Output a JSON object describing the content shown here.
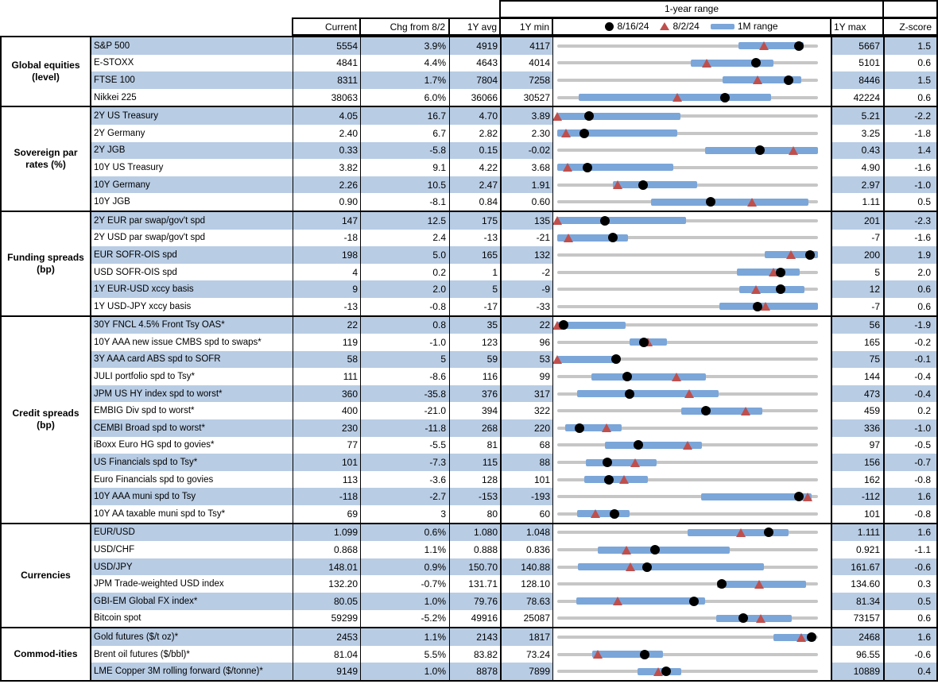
{
  "colors": {
    "row_stripe_blue": "#b8cce4",
    "range_bar_blue": "#7ba6d9",
    "track_gray": "#c6c6c6",
    "marker_red": "#bf4f4c",
    "marker_black": "#000000"
  },
  "chart_data": {
    "type": "table",
    "range_title": "1-year range",
    "columns": [
      "Current",
      "Chg from 8/2",
      "1Y avg",
      "1Y min",
      "1Y max",
      "Z-score"
    ],
    "legend": [
      {
        "shape": "dot",
        "label": "8/16/24"
      },
      {
        "shape": "triangle",
        "label": "8/2/24"
      },
      {
        "shape": "bar",
        "label": "1M range"
      }
    ],
    "sections": [
      {
        "label": "Global equities (level)",
        "label_lines": [
          "Global equities",
          "(level)"
        ],
        "rows": [
          {
            "name": "S&P 500",
            "current": "5554",
            "chg": "3.9%",
            "avg": "4919",
            "min": "4117",
            "max": "5667",
            "z": "1.5",
            "bar": [
              0.695,
              0.945
            ],
            "tri": 0.792,
            "dot": 0.927
          },
          {
            "name": "E-STOXX",
            "current": "4841",
            "chg": "4.4%",
            "avg": "4643",
            "min": "4014",
            "max": "5101",
            "z": "0.6",
            "bar": [
              0.513,
              0.83
            ],
            "tri": 0.573,
            "dot": 0.761
          },
          {
            "name": "FTSE 100",
            "current": "8311",
            "chg": "1.7%",
            "avg": "7804",
            "min": "7258",
            "max": "8446",
            "z": "1.5",
            "bar": [
              0.633,
              0.935
            ],
            "tri": 0.769,
            "dot": 0.886
          },
          {
            "name": "Nikkei 225",
            "current": "38063",
            "chg": "6.0%",
            "avg": "36066",
            "min": "30527",
            "max": "42224",
            "z": "0.6",
            "bar": [
              0.082,
              0.82
            ],
            "tri": 0.46,
            "dot": 0.644
          }
        ]
      },
      {
        "label": "Sovereign par rates (%)",
        "label_lines": [
          "Sovereign par",
          "rates (%)"
        ],
        "rows": [
          {
            "name": "2Y US Treasury",
            "current": "4.05",
            "chg": "16.7",
            "avg": "4.70",
            "min": "3.89",
            "max": "5.21",
            "z": "-2.2",
            "bar": [
              0.0,
              0.472
            ],
            "tri": 0.0,
            "dot": 0.121
          },
          {
            "name": "2Y Germany",
            "current": "2.40",
            "chg": "6.7",
            "avg": "2.82",
            "min": "2.30",
            "max": "3.25",
            "z": "-1.8",
            "bar": [
              0.0,
              0.46
            ],
            "tri": 0.035,
            "dot": 0.105
          },
          {
            "name": "2Y JGB",
            "current": "0.33",
            "chg": "-5.8",
            "avg": "0.15",
            "min": "-0.02",
            "max": "0.43",
            "z": "1.4",
            "bar": [
              0.566,
              1.0
            ],
            "tri": 0.907,
            "dot": 0.778
          },
          {
            "name": "10Y US Treasury",
            "current": "3.82",
            "chg": "9.1",
            "avg": "4.22",
            "min": "3.68",
            "max": "4.90",
            "z": "-1.6",
            "bar": [
              0.0,
              0.445
            ],
            "tri": 0.04,
            "dot": 0.115
          },
          {
            "name": "10Y Germany",
            "current": "2.26",
            "chg": "10.5",
            "avg": "2.47",
            "min": "1.91",
            "max": "2.97",
            "z": "-1.0",
            "bar": [
              0.214,
              0.536
            ],
            "tri": 0.231,
            "dot": 0.33
          },
          {
            "name": "10Y JGB",
            "current": "0.90",
            "chg": "-8.1",
            "avg": "0.84",
            "min": "0.60",
            "max": "1.11",
            "z": "0.5",
            "bar": [
              0.359,
              0.962
            ],
            "tri": 0.747,
            "dot": 0.588
          }
        ]
      },
      {
        "label": "Funding spreads (bp)",
        "label_lines": [
          "Funding spreads",
          "(bp)"
        ],
        "rows": [
          {
            "name": "2Y EUR par swap/gov't spd",
            "current": "147",
            "chg": "12.5",
            "avg": "175",
            "min": "135",
            "max": "201",
            "z": "-2.3",
            "bar": [
              0.0,
              0.495
            ],
            "tri": 0.0,
            "dot": 0.182
          },
          {
            "name": "2Y USD par swap/gov't spd",
            "current": "-18",
            "chg": "2.4",
            "avg": "-13",
            "min": "-21",
            "max": "-7",
            "z": "-1.6",
            "bar": [
              0.0,
              0.27
            ],
            "tri": 0.043,
            "dot": 0.214
          },
          {
            "name": "EUR SOFR-OIS spd",
            "current": "198",
            "chg": "5.0",
            "avg": "165",
            "min": "132",
            "max": "200",
            "z": "1.9",
            "bar": [
              0.795,
              1.0
            ],
            "tri": 0.897,
            "dot": 0.971
          },
          {
            "name": "USD SOFR-OIS spd",
            "current": "4",
            "chg": "0.2",
            "avg": "1",
            "min": "-2",
            "max": "5",
            "z": "2.0",
            "bar": [
              0.688,
              0.93
            ],
            "tri": 0.829,
            "dot": 0.857
          },
          {
            "name": "1Y EUR-USD xccy basis",
            "current": "9",
            "chg": "2.0",
            "avg": "5",
            "min": "-9",
            "max": "12",
            "z": "0.6",
            "bar": [
              0.697,
              0.948
            ],
            "tri": 0.762,
            "dot": 0.857
          },
          {
            "name": "1Y USD-JPY xccy basis",
            "current": "-13",
            "chg": "-0.8",
            "avg": "-17",
            "min": "-33",
            "max": "-7",
            "z": "0.6",
            "bar": [
              0.623,
              1.0
            ],
            "tri": 0.8,
            "dot": 0.769
          }
        ]
      },
      {
        "label": "Credit spreads (bp)",
        "label_lines": [
          "Credit spreads",
          "(bp)"
        ],
        "rows": [
          {
            "name": "30Y FNCL 4.5% Front Tsy OAS*",
            "current": "22",
            "chg": "0.8",
            "avg": "35",
            "min": "22",
            "max": "56",
            "z": "-1.9",
            "bar": [
              0.0,
              0.262
            ],
            "tri": 0.0,
            "dot": 0.025
          },
          {
            "name": "10Y AAA new issue CMBS spd to swaps*",
            "current": "119",
            "chg": "-1.0",
            "avg": "123",
            "min": "96",
            "max": "165",
            "z": "-0.2",
            "bar": [
              0.276,
              0.42
            ],
            "tri": 0.348,
            "dot": 0.333
          },
          {
            "name": "3Y AAA card ABS spd to SOFR",
            "current": "58",
            "chg": "5",
            "avg": "59",
            "min": "53",
            "max": "75",
            "z": "-0.1",
            "bar": [
              0.0,
              0.216
            ],
            "tri": 0.0,
            "dot": 0.227
          },
          {
            "name": "JULI portfolio spd to Tsy*",
            "current": "111",
            "chg": "-8.6",
            "avg": "116",
            "min": "99",
            "max": "144",
            "z": "-0.4",
            "bar": [
              0.131,
              0.571
            ],
            "tri": 0.458,
            "dot": 0.267
          },
          {
            "name": "JPM US HY index spd to worst*",
            "current": "360",
            "chg": "-35.8",
            "avg": "376",
            "min": "317",
            "max": "473",
            "z": "-0.4",
            "bar": [
              0.075,
              0.62
            ],
            "tri": 0.505,
            "dot": 0.276
          },
          {
            "name": "EMBIG Div spd to worst*",
            "current": "400",
            "chg": "-21.0",
            "avg": "394",
            "min": "322",
            "max": "459",
            "z": "0.2",
            "bar": [
              0.477,
              0.787
            ],
            "tri": 0.723,
            "dot": 0.569
          },
          {
            "name": "CEMBI Broad spd to worst*",
            "current": "230",
            "chg": "-11.8",
            "avg": "268",
            "min": "220",
            "max": "336",
            "z": "-1.0",
            "bar": [
              0.03,
              0.246
            ],
            "tri": 0.188,
            "dot": 0.086
          },
          {
            "name": "iBoxx Euro HG spd to govies*",
            "current": "77",
            "chg": "-5.5",
            "avg": "81",
            "min": "68",
            "max": "97",
            "z": "-0.5",
            "bar": [
              0.184,
              0.556
            ],
            "tri": 0.5,
            "dot": 0.31
          },
          {
            "name": "US Financials spd to Tsy*",
            "current": "101",
            "chg": "-7.3",
            "avg": "115",
            "min": "88",
            "max": "156",
            "z": "-0.7",
            "bar": [
              0.11,
              0.38
            ],
            "tri": 0.299,
            "dot": 0.191
          },
          {
            "name": "Euro Financials spd to govies",
            "current": "113",
            "chg": "-3.6",
            "avg": "128",
            "min": "101",
            "max": "162",
            "z": "-0.8",
            "bar": [
              0.104,
              0.347
            ],
            "tri": 0.256,
            "dot": 0.197
          },
          {
            "name": "10Y AAA muni spd to Tsy",
            "current": "-118",
            "chg": "-2.7",
            "avg": "-153",
            "min": "-193",
            "max": "-112",
            "z": "1.6",
            "bar": [
              0.553,
              0.975
            ],
            "tri": 0.959,
            "dot": 0.926
          },
          {
            "name": "10Y AA taxable muni spd to Tsy*",
            "current": "69",
            "chg": "3",
            "avg": "80",
            "min": "60",
            "max": "101",
            "z": "-0.8",
            "bar": [
              0.075,
              0.277
            ],
            "tri": 0.146,
            "dot": 0.22
          }
        ]
      },
      {
        "label": "Currencies",
        "label_lines": [
          "Currencies"
        ],
        "rows": [
          {
            "name": "EUR/USD",
            "current": "1.099",
            "chg": "0.6%",
            "avg": "1.080",
            "min": "1.048",
            "max": "1.111",
            "z": "1.6",
            "bar": [
              0.5,
              0.888
            ],
            "tri": 0.705,
            "dot": 0.81
          },
          {
            "name": "USD/CHF",
            "current": "0.868",
            "chg": "1.1%",
            "avg": "0.888",
            "min": "0.836",
            "max": "0.921",
            "z": "-1.1",
            "bar": [
              0.154,
              0.663
            ],
            "tri": 0.266,
            "dot": 0.376
          },
          {
            "name": "USD/JPY",
            "current": "148.01",
            "chg": "0.9%",
            "avg": "150.70",
            "min": "140.88",
            "max": "161.67",
            "z": "-0.6",
            "bar": [
              0.08,
              0.794
            ],
            "tri": 0.279,
            "dot": 0.343
          },
          {
            "name": "JPM Trade-weighted USD index",
            "current": "132.20",
            "chg": "-0.7%",
            "avg": "131.71",
            "min": "128.10",
            "max": "134.60",
            "z": "0.3",
            "bar": [
              0.613,
              0.955
            ],
            "tri": 0.774,
            "dot": 0.631
          },
          {
            "name": "GBI-EM Global FX index*",
            "current": "80.05",
            "chg": "1.0%",
            "avg": "79.76",
            "min": "78.63",
            "max": "81.34",
            "z": "0.5",
            "bar": [
              0.073,
              0.568
            ],
            "tri": 0.232,
            "dot": 0.524
          },
          {
            "name": "Bitcoin spot",
            "current": "59299",
            "chg": "-5.2%",
            "avg": "49916",
            "min": "25087",
            "max": "73157",
            "z": "0.6",
            "bar": [
              0.61,
              0.898
            ],
            "tri": 0.779,
            "dot": 0.712
          }
        ]
      },
      {
        "label": "Commod-ities",
        "label_lines": [
          "Commod-ities"
        ],
        "rows": [
          {
            "name": "Gold futures ($/t oz)*",
            "current": "2453",
            "chg": "1.1%",
            "avg": "2143",
            "min": "1817",
            "max": "2468",
            "z": "1.6",
            "bar": [
              0.829,
              0.99
            ],
            "tri": 0.936,
            "dot": 0.977
          },
          {
            "name": "Brent oil futures ($/bbl)*",
            "current": "81.04",
            "chg": "5.5%",
            "avg": "83.82",
            "min": "73.24",
            "max": "96.55",
            "z": "-0.6",
            "bar": [
              0.134,
              0.405
            ],
            "tri": 0.154,
            "dot": 0.335
          },
          {
            "name": "LME Copper 3M rolling forward ($/tonne)*",
            "current": "9149",
            "chg": "1.0%",
            "avg": "8878",
            "min": "7899",
            "max": "10889",
            "z": "0.4",
            "bar": [
              0.307,
              0.475
            ],
            "tri": 0.388,
            "dot": 0.418
          }
        ]
      }
    ]
  }
}
